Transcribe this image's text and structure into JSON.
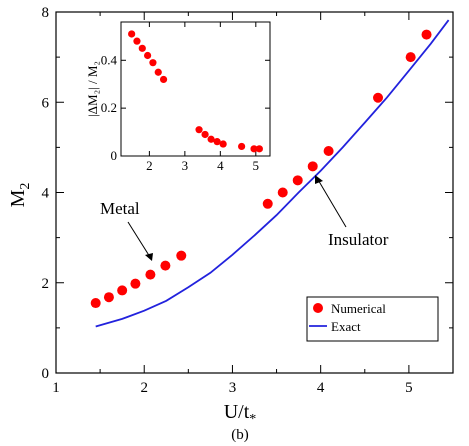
{
  "chart_data": [
    {
      "type": "scatter",
      "xlim": [
        1,
        5.5
      ],
      "ylim": [
        0,
        8
      ],
      "xticks": [
        1,
        2,
        3,
        4,
        5
      ],
      "yticks": [
        0,
        2,
        4,
        6,
        8
      ],
      "xlabel_main": "U/t",
      "xlabel_sub": "*",
      "ylabel_main": "M",
      "ylabel_sub": "2",
      "panel_label": "(b)",
      "legend": {
        "numerical": "Numerical",
        "exact": "Exact",
        "position": "bottom-right"
      },
      "annotations": {
        "metal": "Metal",
        "insulator": "Insulator"
      },
      "series": [
        {
          "name": "Numerical",
          "style": "markers",
          "color": "#ff0000",
          "x": [
            1.45,
            1.6,
            1.75,
            1.9,
            2.07,
            2.24,
            2.42,
            3.4,
            3.57,
            3.74,
            3.91,
            4.09,
            4.65,
            5.02,
            5.2
          ],
          "y": [
            1.55,
            1.68,
            1.83,
            1.98,
            2.18,
            2.38,
            2.6,
            3.75,
            4.0,
            4.27,
            4.58,
            4.92,
            6.1,
            7.0,
            7.5
          ]
        },
        {
          "name": "Exact",
          "style": "line",
          "color": "#2222dd",
          "x": [
            1.45,
            1.75,
            2.0,
            2.25,
            2.5,
            2.75,
            3.0,
            3.25,
            3.5,
            3.75,
            4.0,
            4.25,
            4.5,
            4.75,
            5.0,
            5.25,
            5.45
          ],
          "y": [
            1.03,
            1.2,
            1.38,
            1.6,
            1.9,
            2.22,
            2.62,
            3.05,
            3.5,
            4.0,
            4.48,
            5.0,
            5.55,
            6.1,
            6.7,
            7.3,
            7.82
          ]
        }
      ]
    },
    {
      "type": "scatter",
      "xlim": [
        1.2,
        5.4
      ],
      "ylim": [
        0,
        0.56
      ],
      "xticks": [
        2,
        3,
        4,
        5
      ],
      "yticks": [
        0,
        0.2,
        0.4
      ],
      "ylabel": "|ΔM₂| / M₂",
      "series": [
        {
          "name": "inset",
          "style": "markers",
          "color": "#ff0000",
          "x": [
            1.5,
            1.65,
            1.8,
            1.95,
            2.1,
            2.25,
            2.4,
            3.4,
            3.57,
            3.74,
            3.91,
            4.08,
            4.6,
            4.95,
            5.1
          ],
          "y": [
            0.51,
            0.48,
            0.45,
            0.42,
            0.39,
            0.35,
            0.32,
            0.11,
            0.09,
            0.07,
            0.06,
            0.05,
            0.04,
            0.03,
            0.03
          ]
        }
      ]
    }
  ]
}
